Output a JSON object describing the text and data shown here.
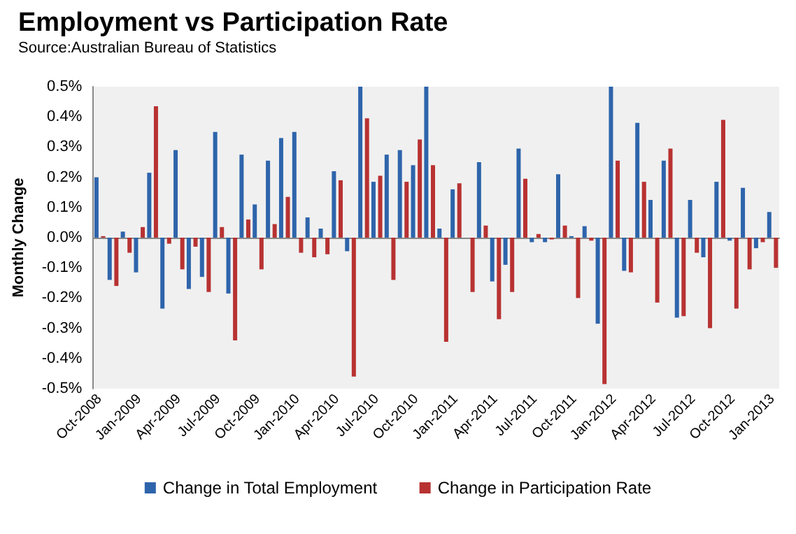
{
  "chart_data": {
    "type": "bar",
    "title": "Employment vs Participation Rate",
    "subtitle": "Source:Australian Bureau of Statistics",
    "ylabel": "Monthly Change",
    "categories": [
      "Oct-2008",
      null,
      null,
      "Jan-2009",
      null,
      null,
      "Apr-2009",
      null,
      null,
      "Jul-2009",
      null,
      null,
      "Oct-2009",
      null,
      null,
      "Jan-2010",
      null,
      null,
      "Apr-2010",
      null,
      null,
      "Jul-2010",
      null,
      null,
      "Oct-2010",
      null,
      null,
      "Jan-2011",
      null,
      null,
      "Apr-2011",
      null,
      null,
      "Jul-2011",
      null,
      null,
      "Oct-2011",
      null,
      null,
      "Jan-2012",
      null,
      null,
      "Apr-2012",
      null,
      null,
      "Jul-2012",
      null,
      null,
      "Oct-2012",
      null,
      null,
      "Jan-2013"
    ],
    "series": [
      {
        "name": "Change in Total Employment",
        "color": "#2e64ab",
        "values": [
          0.2,
          -0.14,
          0.02,
          -0.115,
          0.215,
          -0.235,
          0.29,
          -0.17,
          -0.13,
          0.35,
          -0.185,
          0.275,
          0.11,
          0.255,
          0.33,
          0.35,
          0.067,
          0.03,
          0.22,
          -0.045,
          0.5,
          0.185,
          0.275,
          0.29,
          0.24,
          0.5,
          0.03,
          0.16,
          0,
          0.25,
          -0.145,
          -0.09,
          0.295,
          -0.015,
          -0.015,
          0.21,
          0.005,
          0.038,
          -0.285,
          0.5,
          -0.11,
          0.38,
          0.125,
          0.255,
          -0.265,
          0.125,
          -0.065,
          0.185,
          -0.01,
          0.165,
          -0.035,
          0.085
        ]
      },
      {
        "name": "Change in Participation Rate",
        "color": "#b83232",
        "values": [
          0.005,
          -0.16,
          -0.05,
          0.035,
          0.435,
          -0.02,
          -0.105,
          -0.03,
          -0.18,
          0.035,
          -0.34,
          0.06,
          -0.105,
          0.045,
          0.135,
          -0.05,
          -0.065,
          -0.055,
          0.19,
          -0.46,
          0.395,
          0.205,
          -0.14,
          0.185,
          0.325,
          0.24,
          -0.345,
          0.18,
          -0.18,
          0.04,
          -0.27,
          -0.18,
          0.195,
          0.012,
          -0.006,
          0.04,
          -0.2,
          -0.01,
          -0.485,
          0.255,
          -0.115,
          0.185,
          -0.215,
          0.295,
          -0.26,
          -0.05,
          -0.3,
          0.39,
          -0.235,
          -0.105,
          -0.015,
          -0.1
        ]
      }
    ],
    "ylim": [
      -0.5,
      0.5
    ],
    "yticks": [
      {
        "value": -0.5,
        "label": "-0.5%"
      },
      {
        "value": -0.4,
        "label": "-0.4%"
      },
      {
        "value": -0.3,
        "label": "-0.3%"
      },
      {
        "value": -0.2,
        "label": "-0.2%"
      },
      {
        "value": -0.1,
        "label": "-0.1%"
      },
      {
        "value": 0,
        "label": "0.0%"
      },
      {
        "value": 0.1,
        "label": "0.1%"
      },
      {
        "value": 0.2,
        "label": "0.2%"
      },
      {
        "value": 0.3,
        "label": "0.3%"
      },
      {
        "value": 0.4,
        "label": "0.4%"
      },
      {
        "value": 0.5,
        "label": "0.5%"
      }
    ],
    "legend": "bottom"
  }
}
